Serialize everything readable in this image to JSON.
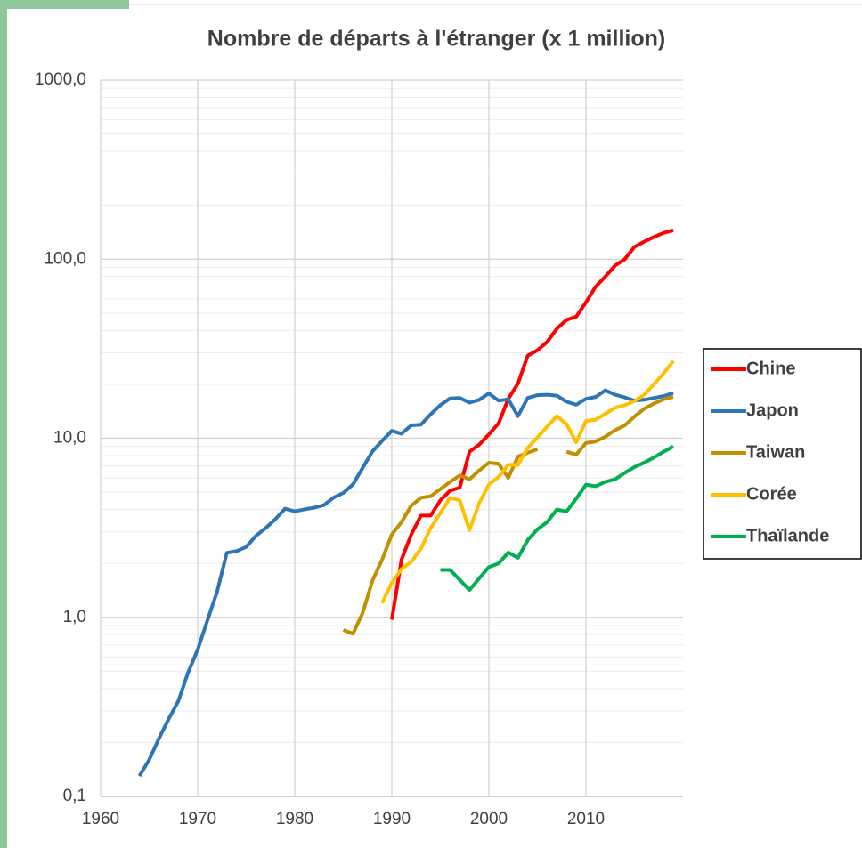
{
  "chart_data": {
    "type": "line",
    "title": "Nombre de départs à l'étranger (x 1 million)",
    "x": [
      1964,
      1965,
      1966,
      1967,
      1968,
      1969,
      1970,
      1971,
      1972,
      1973,
      1974,
      1975,
      1976,
      1977,
      1978,
      1979,
      1980,
      1981,
      1982,
      1983,
      1984,
      1985,
      1986,
      1987,
      1988,
      1989,
      1990,
      1991,
      1992,
      1993,
      1994,
      1995,
      1996,
      1997,
      1998,
      1999,
      2000,
      2001,
      2002,
      2003,
      2004,
      2005,
      2006,
      2007,
      2008,
      2009,
      2010,
      2011,
      2012,
      2013,
      2014,
      2015,
      2016,
      2017,
      2018,
      2019
    ],
    "series": [
      {
        "name": "Chine",
        "color": "#ff0000",
        "values": [
          null,
          null,
          null,
          null,
          null,
          null,
          null,
          null,
          null,
          null,
          null,
          null,
          null,
          null,
          null,
          null,
          null,
          null,
          null,
          null,
          null,
          null,
          null,
          null,
          null,
          null,
          0.97,
          2.1,
          2.9,
          3.7,
          3.7,
          4.5,
          5.1,
          5.3,
          8.4,
          9.2,
          10.5,
          12.1,
          16.6,
          20.2,
          28.9,
          31,
          34.5,
          40.9,
          45.8,
          47.7,
          57.4,
          70.3,
          80,
          92,
          100,
          117,
          125,
          133,
          140,
          145
        ]
      },
      {
        "name": "Japon",
        "color": "#2e75b6",
        "values": [
          0.13,
          0.16,
          0.21,
          0.27,
          0.34,
          0.49,
          0.66,
          0.96,
          1.39,
          2.29,
          2.34,
          2.47,
          2.85,
          3.15,
          3.53,
          4.04,
          3.91,
          4.01,
          4.09,
          4.23,
          4.66,
          4.95,
          5.52,
          6.83,
          8.43,
          9.66,
          11.0,
          10.6,
          11.8,
          11.9,
          13.6,
          15.3,
          16.7,
          16.8,
          15.8,
          16.4,
          17.8,
          16.2,
          16.5,
          13.3,
          16.8,
          17.4,
          17.5,
          17.3,
          16.0,
          15.4,
          16.6,
          17.0,
          18.5,
          17.5,
          16.9,
          16.2,
          16.4,
          16.8,
          17.2,
          17.9
        ]
      },
      {
        "name": "Taiwan",
        "color": "#bf9000",
        "values": [
          null,
          null,
          null,
          null,
          null,
          null,
          null,
          null,
          null,
          null,
          null,
          null,
          null,
          null,
          null,
          null,
          null,
          null,
          null,
          null,
          null,
          0.85,
          0.81,
          1.06,
          1.6,
          2.1,
          2.9,
          3.4,
          4.2,
          4.65,
          4.74,
          5.2,
          5.7,
          6.2,
          5.9,
          6.6,
          7.3,
          7.2,
          6.0,
          7.9,
          8.3,
          8.7,
          null,
          null,
          8.4,
          8.1,
          9.4,
          9.6,
          10.2,
          11.1,
          11.8,
          13.2,
          14.6,
          15.6,
          16.5,
          17.0
        ]
      },
      {
        "name": "Corée",
        "color": "#ffc000",
        "values": [
          null,
          null,
          null,
          null,
          null,
          null,
          null,
          null,
          null,
          null,
          null,
          null,
          null,
          null,
          null,
          null,
          null,
          null,
          null,
          null,
          null,
          null,
          null,
          null,
          null,
          1.2,
          1.56,
          1.86,
          2.04,
          2.42,
          3.15,
          3.82,
          4.65,
          4.5,
          3.07,
          4.34,
          5.51,
          6.08,
          7.12,
          7.09,
          8.83,
          10.1,
          11.6,
          13.3,
          12.0,
          9.5,
          12.5,
          12.7,
          13.7,
          14.8,
          15.3,
          16.1,
          17.5,
          20,
          23,
          27
        ]
      },
      {
        "name": "Thaïlande",
        "color": "#00b050",
        "values": [
          null,
          null,
          null,
          null,
          null,
          null,
          null,
          null,
          null,
          null,
          null,
          null,
          null,
          null,
          null,
          null,
          null,
          null,
          null,
          null,
          null,
          null,
          null,
          null,
          null,
          null,
          null,
          null,
          null,
          null,
          null,
          1.84,
          1.84,
          1.62,
          1.42,
          1.65,
          1.91,
          2.0,
          2.3,
          2.15,
          2.7,
          3.1,
          3.4,
          4.0,
          3.9,
          4.6,
          5.5,
          5.4,
          5.7,
          5.9,
          6.4,
          6.9,
          7.3,
          7.8,
          8.4,
          9.0
        ]
      }
    ],
    "xlim": [
      1960,
      2020
    ],
    "xticks": [
      1960,
      1970,
      1980,
      1990,
      2000,
      2010
    ],
    "ylim": [
      0.1,
      1000
    ],
    "log_y": true,
    "yticks": [
      {
        "value": 0.1,
        "label": "0,1"
      },
      {
        "value": 1,
        "label": "1,0"
      },
      {
        "value": 10,
        "label": "10,0"
      },
      {
        "value": 100,
        "label": "100,0"
      },
      {
        "value": 1000,
        "label": "1000,0"
      }
    ],
    "grid": true,
    "minor_grid": true,
    "legend": "right"
  }
}
